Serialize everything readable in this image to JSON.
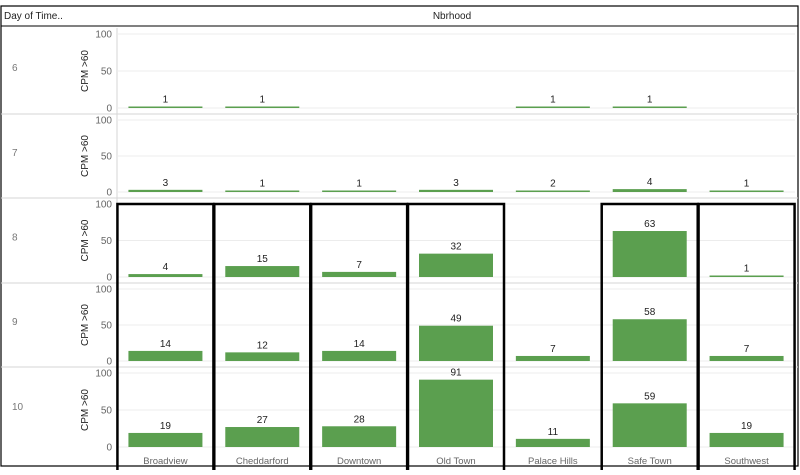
{
  "header": {
    "row_field": "Day of Time..",
    "column_field": "Nbrhood"
  },
  "chart_data": {
    "type": "bar",
    "title": "",
    "column_field": "Nbrhood",
    "row_field": "Day of Time..",
    "ylabel": "CPM >60",
    "ylim": [
      0,
      100
    ],
    "yticks": [
      0,
      50,
      100
    ],
    "categories": [
      "Broadview",
      "Cheddarford",
      "Downtown",
      "Old Town",
      "Palace Hills",
      "Safe Town",
      "Southwest"
    ],
    "rows": [
      {
        "label": "6",
        "values": [
          1,
          1,
          null,
          null,
          1,
          1,
          null
        ]
      },
      {
        "label": "7",
        "values": [
          3,
          1,
          1,
          3,
          2,
          4,
          1
        ]
      },
      {
        "label": "8",
        "values": [
          4,
          15,
          7,
          32,
          null,
          63,
          1
        ]
      },
      {
        "label": "9",
        "values": [
          14,
          12,
          14,
          49,
          7,
          58,
          7
        ]
      },
      {
        "label": "10",
        "values": [
          19,
          27,
          28,
          91,
          11,
          59,
          19
        ]
      }
    ],
    "data_labels": true,
    "grid": true,
    "highlighted_categories": [
      "Broadview",
      "Cheddarford",
      "Downtown",
      "Old Town",
      "Safe Town",
      "Southwest"
    ],
    "highlight_from_row": "8",
    "colors": {
      "bar": "#5b9f4f",
      "highlight_border": "#000000",
      "grid": "#ececec",
      "divider": "#d6d6d6"
    }
  }
}
